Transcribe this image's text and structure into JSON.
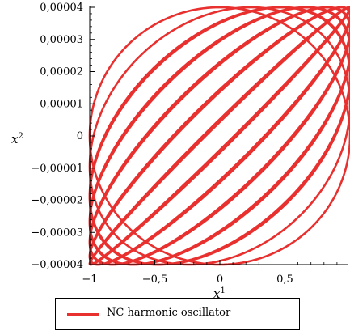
{
  "chart_data": {
    "type": "line",
    "title": "",
    "xlabel": "x",
    "xlabel_sup": "1",
    "ylabel": "x",
    "ylabel_sup": "2",
    "xlim": [
      -1,
      1
    ],
    "ylim": [
      -4e-05,
      4e-05
    ],
    "x_ticks": [
      {
        "value": -1,
        "label": "−1"
      },
      {
        "value": -0.5,
        "label": "−0,5"
      },
      {
        "value": 0,
        "label": "0"
      },
      {
        "value": 0.5,
        "label": "0,5"
      }
    ],
    "y_ticks": [
      {
        "value": 4e-05,
        "label": "0,00004"
      },
      {
        "value": 3e-05,
        "label": "0,00003"
      },
      {
        "value": 2e-05,
        "label": "0,00002"
      },
      {
        "value": 1e-05,
        "label": "0,00001"
      },
      {
        "value": 0,
        "label": "0"
      },
      {
        "value": -1e-05,
        "label": "−0,00001"
      },
      {
        "value": -2e-05,
        "label": "−0,00002"
      },
      {
        "value": -3e-05,
        "label": "−0,00003"
      },
      {
        "value": -4e-05,
        "label": "−0,00004"
      }
    ],
    "series": [
      {
        "name": "NC harmonic oscillator",
        "color": "#e8302f",
        "parametric": {
          "x_amplitude": 1,
          "y_amplitude": 4e-05,
          "phase_step": 0.24,
          "loops": 12
        }
      }
    ],
    "grid": false,
    "legend_position": "bottom"
  },
  "legend": {
    "label": "NC harmonic oscillator"
  }
}
